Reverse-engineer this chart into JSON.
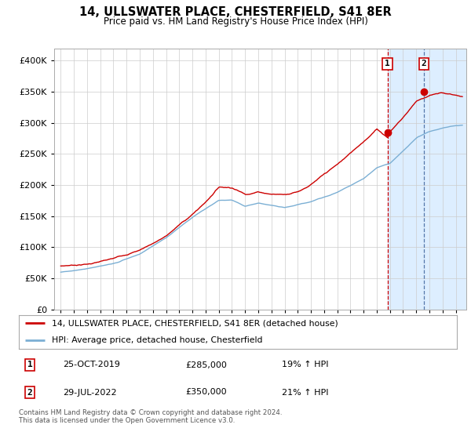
{
  "title": "14, ULLSWATER PLACE, CHESTERFIELD, S41 8ER",
  "subtitle": "Price paid vs. HM Land Registry's House Price Index (HPI)",
  "legend_line1": "14, ULLSWATER PLACE, CHESTERFIELD, S41 8ER (detached house)",
  "legend_line2": "HPI: Average price, detached house, Chesterfield",
  "footnote": "Contains HM Land Registry data © Crown copyright and database right 2024.\nThis data is licensed under the Open Government Licence v3.0.",
  "transactions": [
    {
      "num": 1,
      "date": "25-OCT-2019",
      "price": "£285,000",
      "pct": "19% ↑ HPI"
    },
    {
      "num": 2,
      "date": "29-JUL-2022",
      "price": "£350,000",
      "pct": "21% ↑ HPI"
    }
  ],
  "transaction_dates": [
    2019.81,
    2022.56
  ],
  "transaction_prices": [
    285000,
    350000
  ],
  "highlight_color": "#ddeeff",
  "red_line_color": "#cc0000",
  "blue_line_color": "#7bafd4",
  "grid_color": "#cccccc",
  "background_color": "#ffffff",
  "ylim": [
    0,
    420000
  ],
  "yticks": [
    0,
    50000,
    100000,
    150000,
    200000,
    250000,
    300000,
    350000,
    400000
  ],
  "xlim_start": 1994.5,
  "xlim_end": 2025.8,
  "xticks": [
    1995,
    1996,
    1997,
    1998,
    1999,
    2000,
    2001,
    2002,
    2003,
    2004,
    2005,
    2006,
    2007,
    2008,
    2009,
    2010,
    2011,
    2012,
    2013,
    2014,
    2015,
    2016,
    2017,
    2018,
    2019,
    2020,
    2021,
    2022,
    2023,
    2024,
    2025
  ]
}
